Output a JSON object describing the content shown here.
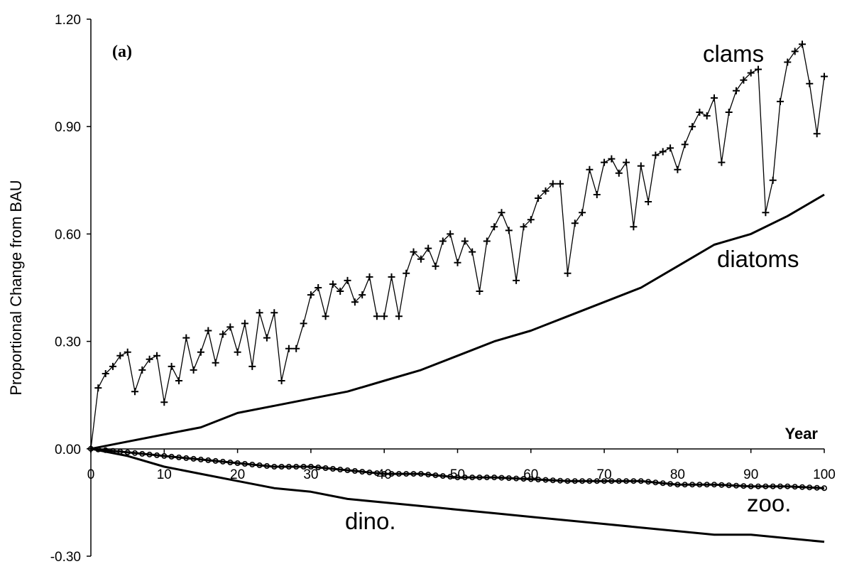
{
  "chart_data": {
    "type": "line",
    "panel_label": "(a)",
    "ylabel": "Proportional Change from BAU",
    "xlabel": "Year",
    "xlim": [
      0,
      100
    ],
    "ylim": [
      -0.3,
      1.2
    ],
    "x_ticks": [
      "0",
      "10",
      "20",
      "30",
      "40",
      "50",
      "60",
      "70",
      "80",
      "90",
      "100"
    ],
    "y_ticks": [
      "-0.30",
      "0.00",
      "0.30",
      "0.60",
      "0.90",
      "1.20"
    ],
    "grid": false,
    "series": [
      {
        "name": "clams",
        "marker": "plus",
        "x": [
          0,
          1,
          2,
          3,
          4,
          5,
          6,
          7,
          8,
          9,
          10,
          11,
          12,
          13,
          14,
          15,
          16,
          17,
          18,
          19,
          20,
          21,
          22,
          23,
          24,
          25,
          26,
          27,
          28,
          29,
          30,
          31,
          32,
          33,
          34,
          35,
          36,
          37,
          38,
          39,
          40,
          41,
          42,
          43,
          44,
          45,
          46,
          47,
          48,
          49,
          50,
          51,
          52,
          53,
          54,
          55,
          56,
          57,
          58,
          59,
          60,
          61,
          62,
          63,
          64,
          65,
          66,
          67,
          68,
          69,
          70,
          71,
          72,
          73,
          74,
          75,
          76,
          77,
          78,
          79,
          80,
          81,
          82,
          83,
          84,
          85,
          86,
          87,
          88,
          89,
          90,
          91,
          92,
          93,
          94,
          95,
          96,
          97,
          98,
          99,
          100
        ],
        "values": [
          0.0,
          0.17,
          0.21,
          0.23,
          0.26,
          0.27,
          0.16,
          0.22,
          0.25,
          0.26,
          0.13,
          0.23,
          0.19,
          0.31,
          0.22,
          0.27,
          0.33,
          0.24,
          0.32,
          0.34,
          0.27,
          0.35,
          0.23,
          0.38,
          0.31,
          0.38,
          0.19,
          0.28,
          0.28,
          0.35,
          0.43,
          0.45,
          0.37,
          0.46,
          0.44,
          0.47,
          0.41,
          0.43,
          0.48,
          0.37,
          0.37,
          0.48,
          0.37,
          0.49,
          0.55,
          0.53,
          0.56,
          0.51,
          0.58,
          0.6,
          0.52,
          0.58,
          0.55,
          0.44,
          0.58,
          0.62,
          0.66,
          0.61,
          0.47,
          0.62,
          0.64,
          0.7,
          0.72,
          0.74,
          0.74,
          0.49,
          0.63,
          0.66,
          0.78,
          0.71,
          0.8,
          0.81,
          0.77,
          0.8,
          0.62,
          0.79,
          0.69,
          0.82,
          0.83,
          0.84,
          0.78,
          0.85,
          0.9,
          0.94,
          0.93,
          0.98,
          0.8,
          0.94,
          1.0,
          1.03,
          1.05,
          1.06,
          0.66,
          0.75,
          0.97,
          1.08,
          1.11,
          1.13,
          1.02,
          0.88,
          1.04
        ]
      },
      {
        "name": "diatoms",
        "marker": "none",
        "x": [
          0,
          5,
          10,
          15,
          20,
          25,
          30,
          35,
          40,
          45,
          50,
          55,
          60,
          65,
          70,
          75,
          80,
          85,
          90,
          95,
          100
        ],
        "values": [
          0.0,
          0.02,
          0.04,
          0.06,
          0.1,
          0.12,
          0.14,
          0.16,
          0.19,
          0.22,
          0.26,
          0.3,
          0.33,
          0.37,
          0.41,
          0.45,
          0.51,
          0.57,
          0.6,
          0.65,
          0.71
        ]
      },
      {
        "name": "zoo.",
        "marker": "circle",
        "x": [
          0,
          5,
          10,
          15,
          20,
          25,
          30,
          35,
          40,
          45,
          50,
          55,
          60,
          65,
          70,
          75,
          80,
          85,
          90,
          95,
          100
        ],
        "values": [
          0.0,
          -0.01,
          -0.02,
          -0.03,
          -0.04,
          -0.05,
          -0.05,
          -0.06,
          -0.07,
          -0.07,
          -0.08,
          -0.08,
          -0.085,
          -0.09,
          -0.09,
          -0.09,
          -0.1,
          -0.1,
          -0.105,
          -0.105,
          -0.11
        ]
      },
      {
        "name": "dino.",
        "marker": "none",
        "x": [
          0,
          5,
          10,
          15,
          20,
          25,
          30,
          35,
          40,
          45,
          50,
          55,
          60,
          65,
          70,
          75,
          80,
          85,
          90,
          95,
          100
        ],
        "values": [
          0.0,
          -0.02,
          -0.05,
          -0.07,
          -0.09,
          -0.11,
          -0.12,
          -0.14,
          -0.15,
          -0.16,
          -0.17,
          -0.18,
          -0.19,
          -0.2,
          -0.21,
          -0.22,
          -0.23,
          -0.24,
          -0.24,
          -0.25,
          -0.26
        ]
      }
    ],
    "colors": {
      "line": "#000000",
      "background": "#ffffff"
    }
  }
}
